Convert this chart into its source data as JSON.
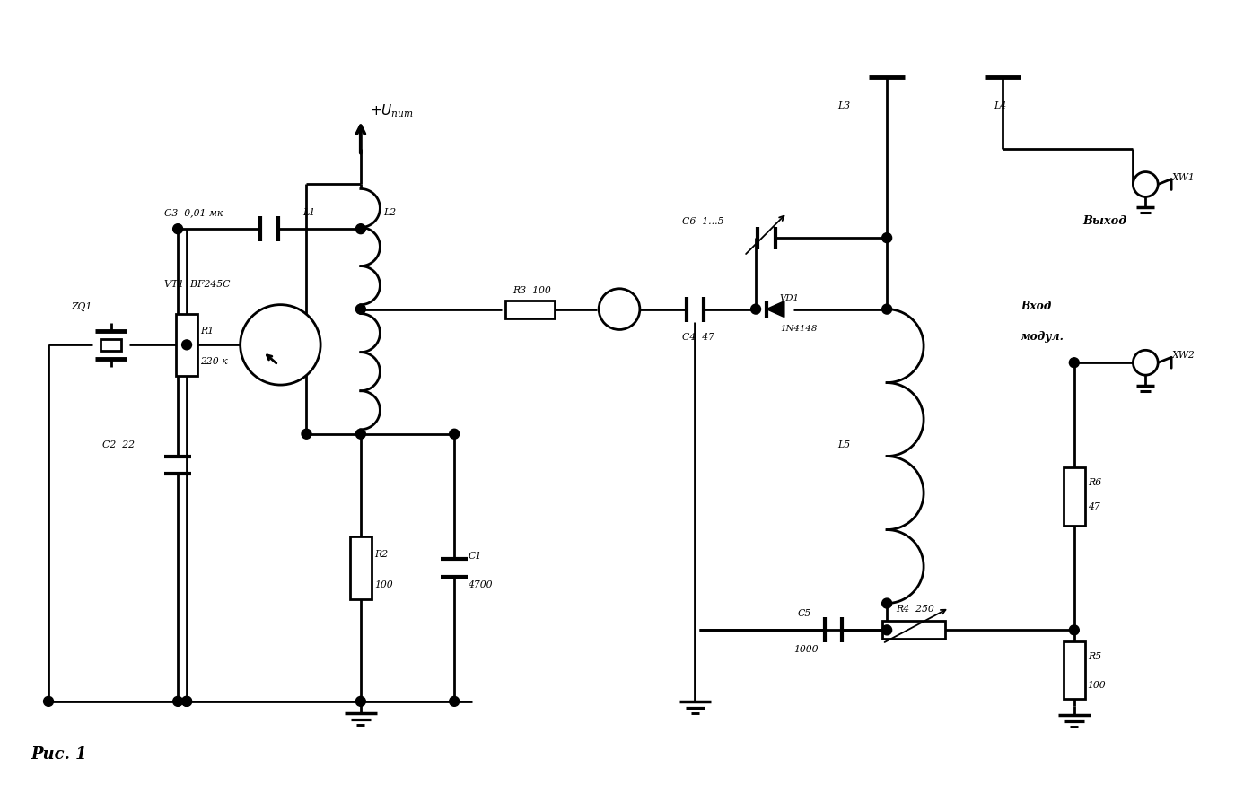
{
  "bg_color": "#ffffff",
  "line_color": "#000000",
  "lw": 2.0,
  "labels": {
    "power": "+Uпит",
    "output": "Выход",
    "input_line1": "Вход",
    "input_line2": "модул.",
    "caption": "Рис. 1",
    "VT1": "VT1  BF245C",
    "VD1_name": "VD1",
    "VD1_val": "1N4148",
    "ZQ1": "ZQ1",
    "XW1": "XW1",
    "XW2": "XW2",
    "C3_label": "C3  0,01 мк",
    "C2_label": "C2  22",
    "C1_label": "C1",
    "C1_val": "4700",
    "C4_label": "C4  47",
    "C5_label": "C5",
    "C5_val": "1000",
    "C6_label": "C6  1...5",
    "R1_label": "R1",
    "R1_val": "220 к",
    "R2_label": "R2",
    "R2_val": "100",
    "R3_label": "R3  100",
    "R4_label": "R4  250",
    "R5_label": "R5",
    "R5_val": "100",
    "R6_label": "R6",
    "R6_val": "47",
    "L1_label": "L1",
    "L2_label": "L2",
    "L3_label": "L3",
    "L4_label": "L4",
    "L5_label": "L5"
  }
}
